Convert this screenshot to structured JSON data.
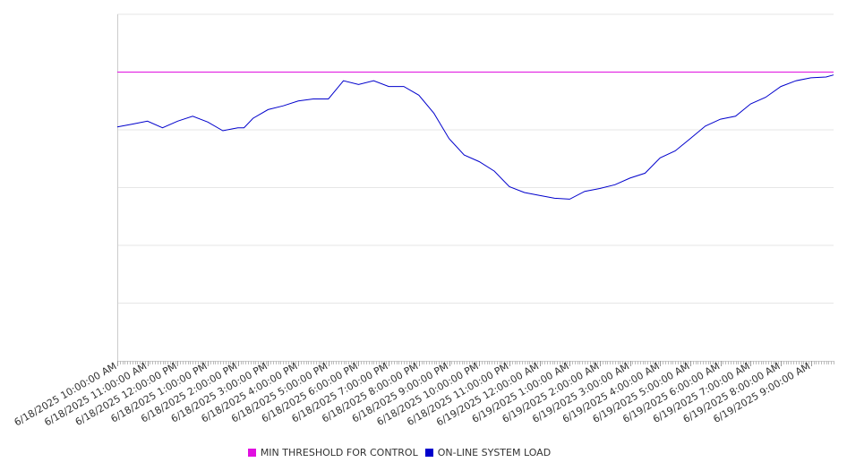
{
  "chart_data": {
    "type": "line",
    "x_tick_labels": [
      "6/18/2025 10:00:00 AM",
      "6/18/2025 11:00:00 AM",
      "6/18/2025 12:00:00 PM",
      "6/18/2025 1:00:00 PM",
      "6/18/2025 2:00:00 PM",
      "6/18/2025 3:00:00 PM",
      "6/18/2025 4:00:00 PM",
      "6/18/2025 5:00:00 PM",
      "6/18/2025 6:00:00 PM",
      "6/18/2025 7:00:00 PM",
      "6/18/2025 8:00:00 PM",
      "6/18/2025 9:00:00 PM",
      "6/18/2025 10:00:00 PM",
      "6/18/2025 11:00:00 PM",
      "6/19/2025 12:00:00 AM",
      "6/19/2025 1:00:00 AM",
      "6/19/2025 2:00:00 AM",
      "6/19/2025 3:00:00 AM",
      "6/19/2025 4:00:00 AM",
      "6/19/2025 5:00:00 AM",
      "6/19/2025 6:00:00 AM",
      "6/19/2025 7:00:00 AM",
      "6/19/2025 8:00:00 AM",
      "6/19/2025 9:00:00 AM"
    ],
    "x_hours": [
      0,
      0.5,
      1,
      1.5,
      2,
      2.5,
      3,
      3.5,
      3.8,
      4,
      4.2,
      4.5,
      5,
      5.5,
      6,
      6.5,
      7,
      7.5,
      8,
      8.5,
      9,
      9.3,
      9.5,
      10,
      10.5,
      11,
      11.5,
      12,
      12.5,
      13,
      13.5,
      14,
      14.5,
      15,
      15.5,
      16,
      16.5,
      17,
      17.5,
      18,
      18.5,
      19,
      19.5,
      20,
      20.5,
      21,
      21.5,
      22,
      22.5,
      23,
      23.5,
      23.75
    ],
    "series": [
      {
        "name": "MIN THRESHOLD FOR CONTROL",
        "color": "#e010e0",
        "values": [
          100,
          100,
          100,
          100,
          100,
          100,
          100,
          100,
          100,
          100,
          100,
          100,
          100,
          100,
          100,
          100,
          100,
          100,
          100,
          100,
          100,
          100,
          100,
          100,
          100,
          100,
          100,
          100,
          100,
          100,
          100,
          100,
          100,
          100,
          100,
          100,
          100,
          100,
          100,
          100,
          100,
          100,
          100,
          100,
          100,
          100,
          100,
          100,
          100,
          100,
          100,
          100
        ]
      },
      {
        "name": "ON-LINE SYSTEM LOAD",
        "color": "#0000cc",
        "values": [
          81.0,
          82.0,
          83.0,
          80.7,
          83.0,
          84.7,
          82.7,
          79.7,
          80.3,
          80.7,
          80.7,
          84.0,
          87.0,
          88.3,
          90.0,
          90.7,
          90.7,
          97.0,
          95.7,
          97.0,
          95.0,
          95.0,
          95.0,
          92.0,
          85.7,
          77.0,
          71.3,
          69.0,
          65.7,
          60.3,
          58.3,
          57.3,
          56.3,
          56.0,
          58.7,
          59.7,
          61.0,
          63.3,
          65.0,
          70.3,
          72.7,
          77.0,
          81.3,
          83.7,
          84.7,
          89.0,
          91.3,
          95.0,
          97.0,
          98.0,
          98.3,
          99.0
        ]
      }
    ],
    "ylim": [
      0,
      120
    ],
    "grid": true,
    "legend": "bottom-center"
  }
}
